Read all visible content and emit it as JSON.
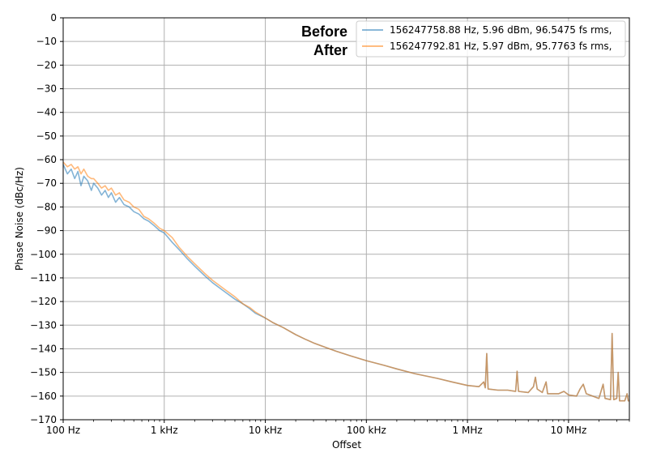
{
  "chart_data": {
    "type": "line",
    "title": "",
    "xlabel": "Offset",
    "ylabel": "Phase Noise (dBc/Hz)",
    "xscale": "log",
    "xlim": [
      100,
      40000000
    ],
    "ylim": [
      -170,
      0
    ],
    "grid": true,
    "legend_position": "upper right",
    "x_ticks": [
      {
        "value": 100,
        "label": "100 Hz"
      },
      {
        "value": 1000,
        "label": "1 kHz"
      },
      {
        "value": 10000,
        "label": "10 kHz"
      },
      {
        "value": 100000,
        "label": "100 kHz"
      },
      {
        "value": 1000000,
        "label": "1 MHz"
      },
      {
        "value": 10000000,
        "label": "10 MHz"
      }
    ],
    "y_ticks": [
      0,
      -10,
      -20,
      -30,
      -40,
      -50,
      -60,
      -70,
      -80,
      -90,
      -100,
      -110,
      -120,
      -130,
      -140,
      -150,
      -160,
      -170
    ],
    "annotations": [
      {
        "text": "Before",
        "series": 0
      },
      {
        "text": "After",
        "series": 1
      }
    ],
    "series": [
      {
        "name": "156247758.88 Hz, 5.96 dBm, 96.5475 fs rms,",
        "color": "#1f77b4",
        "points": [
          [
            100,
            -62
          ],
          [
            110,
            -66
          ],
          [
            120,
            -64
          ],
          [
            130,
            -68
          ],
          [
            140,
            -65
          ],
          [
            150,
            -71
          ],
          [
            160,
            -67
          ],
          [
            175,
            -69
          ],
          [
            190,
            -73
          ],
          [
            200,
            -70
          ],
          [
            220,
            -72
          ],
          [
            240,
            -75
          ],
          [
            260,
            -73
          ],
          [
            280,
            -76
          ],
          [
            300,
            -74
          ],
          [
            330,
            -78
          ],
          [
            360,
            -76
          ],
          [
            400,
            -79
          ],
          [
            450,
            -80
          ],
          [
            500,
            -82
          ],
          [
            560,
            -83
          ],
          [
            630,
            -85
          ],
          [
            700,
            -86
          ],
          [
            800,
            -88
          ],
          [
            900,
            -90
          ],
          [
            1000,
            -91
          ],
          [
            1200,
            -95
          ],
          [
            1400,
            -98
          ],
          [
            1700,
            -102
          ],
          [
            2000,
            -105
          ],
          [
            2500,
            -109
          ],
          [
            3000,
            -112
          ],
          [
            4000,
            -116
          ],
          [
            5000,
            -119
          ],
          [
            6000,
            -121
          ],
          [
            7000,
            -123
          ],
          [
            8000,
            -125
          ],
          [
            10000,
            -127
          ],
          [
            12000,
            -129
          ],
          [
            15000,
            -131
          ],
          [
            20000,
            -134
          ],
          [
            25000,
            -136
          ],
          [
            30000,
            -137.5
          ],
          [
            40000,
            -139.5
          ],
          [
            50000,
            -141
          ],
          [
            70000,
            -143
          ],
          [
            100000,
            -145
          ],
          [
            150000,
            -147
          ],
          [
            200000,
            -148.5
          ],
          [
            300000,
            -150.5
          ],
          [
            500000,
            -152.5
          ],
          [
            700000,
            -154
          ],
          [
            1000000,
            -155.5
          ],
          [
            1300000,
            -156
          ],
          [
            1450000,
            -154
          ],
          [
            1500000,
            -156.5
          ],
          [
            1550000,
            -142
          ],
          [
            1600000,
            -157
          ],
          [
            2000000,
            -157.5
          ],
          [
            2500000,
            -157.5
          ],
          [
            3000000,
            -158
          ],
          [
            3100000,
            -149.5
          ],
          [
            3200000,
            -158
          ],
          [
            4000000,
            -158.5
          ],
          [
            4500000,
            -156
          ],
          [
            4700000,
            -152
          ],
          [
            4900000,
            -157
          ],
          [
            5500000,
            -158.5
          ],
          [
            6000000,
            -154
          ],
          [
            6200000,
            -159
          ],
          [
            8000000,
            -159
          ],
          [
            9000000,
            -158
          ],
          [
            10000000,
            -159.5
          ],
          [
            12000000,
            -160
          ],
          [
            13000000,
            -157
          ],
          [
            14000000,
            -155
          ],
          [
            15000000,
            -159
          ],
          [
            20000000,
            -161
          ],
          [
            22000000,
            -155
          ],
          [
            23000000,
            -161
          ],
          [
            26000000,
            -161.5
          ],
          [
            27000000,
            -133.5
          ],
          [
            28000000,
            -161.5
          ],
          [
            30000000,
            -161
          ],
          [
            31000000,
            -150
          ],
          [
            32000000,
            -162
          ],
          [
            36000000,
            -162
          ],
          [
            38000000,
            -159
          ],
          [
            39000000,
            -162
          ],
          [
            40000000,
            -162
          ]
        ]
      },
      {
        "name": "156247792.81 Hz, 5.97 dBm, 95.7763 fs rms,",
        "color": "#ff7f0e",
        "points": [
          [
            100,
            -61
          ],
          [
            110,
            -63
          ],
          [
            120,
            -62
          ],
          [
            130,
            -64
          ],
          [
            140,
            -63
          ],
          [
            150,
            -66
          ],
          [
            160,
            -64
          ],
          [
            175,
            -67
          ],
          [
            190,
            -68
          ],
          [
            200,
            -68
          ],
          [
            220,
            -70
          ],
          [
            240,
            -72
          ],
          [
            260,
            -71
          ],
          [
            280,
            -73
          ],
          [
            300,
            -72
          ],
          [
            330,
            -75
          ],
          [
            360,
            -74
          ],
          [
            400,
            -77
          ],
          [
            450,
            -78
          ],
          [
            500,
            -80
          ],
          [
            560,
            -81
          ],
          [
            630,
            -84
          ],
          [
            700,
            -85
          ],
          [
            800,
            -87
          ],
          [
            900,
            -89
          ],
          [
            1000,
            -90
          ],
          [
            1200,
            -93
          ],
          [
            1400,
            -97
          ],
          [
            1700,
            -101
          ],
          [
            2000,
            -104
          ],
          [
            2500,
            -108
          ],
          [
            3000,
            -111
          ],
          [
            4000,
            -115
          ],
          [
            5000,
            -118
          ],
          [
            6000,
            -121
          ],
          [
            7000,
            -122.5
          ],
          [
            8000,
            -124.5
          ],
          [
            10000,
            -127
          ],
          [
            12000,
            -129
          ],
          [
            15000,
            -131
          ],
          [
            20000,
            -134
          ],
          [
            25000,
            -136
          ],
          [
            30000,
            -137.5
          ],
          [
            40000,
            -139.5
          ],
          [
            50000,
            -141
          ],
          [
            70000,
            -143
          ],
          [
            100000,
            -145
          ],
          [
            150000,
            -147
          ],
          [
            200000,
            -148.5
          ],
          [
            300000,
            -150.5
          ],
          [
            500000,
            -152.5
          ],
          [
            700000,
            -154
          ],
          [
            1000000,
            -155.5
          ],
          [
            1300000,
            -156
          ],
          [
            1450000,
            -154
          ],
          [
            1500000,
            -156.5
          ],
          [
            1550000,
            -142
          ],
          [
            1600000,
            -157
          ],
          [
            2000000,
            -157.5
          ],
          [
            2500000,
            -157.5
          ],
          [
            3000000,
            -158
          ],
          [
            3100000,
            -149.5
          ],
          [
            3200000,
            -158
          ],
          [
            4000000,
            -158.5
          ],
          [
            4500000,
            -156
          ],
          [
            4700000,
            -152
          ],
          [
            4900000,
            -157
          ],
          [
            5500000,
            -158.5
          ],
          [
            6000000,
            -154
          ],
          [
            6200000,
            -159
          ],
          [
            8000000,
            -159
          ],
          [
            9000000,
            -158
          ],
          [
            10000000,
            -159.5
          ],
          [
            12000000,
            -160
          ],
          [
            13000000,
            -157
          ],
          [
            14000000,
            -155
          ],
          [
            15000000,
            -159
          ],
          [
            20000000,
            -161
          ],
          [
            22000000,
            -155
          ],
          [
            23000000,
            -161
          ],
          [
            26000000,
            -161.5
          ],
          [
            27000000,
            -133.5
          ],
          [
            28000000,
            -161.5
          ],
          [
            30000000,
            -161
          ],
          [
            31000000,
            -150
          ],
          [
            32000000,
            -162
          ],
          [
            36000000,
            -162
          ],
          [
            38000000,
            -159
          ],
          [
            39000000,
            -162
          ],
          [
            40000000,
            -162
          ]
        ]
      }
    ]
  }
}
